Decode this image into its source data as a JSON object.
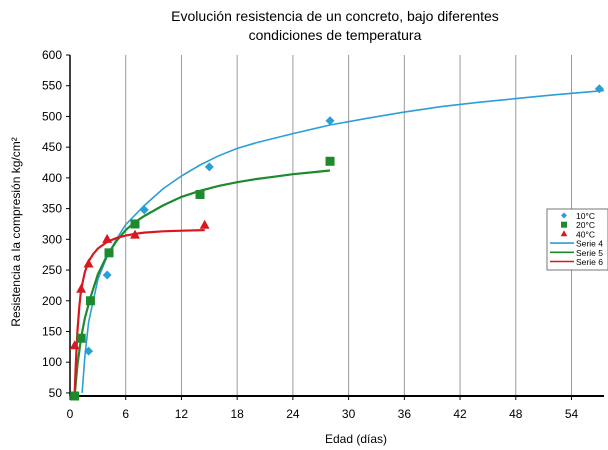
{
  "chart_data": {
    "type": "scatter",
    "title_lines": [
      "Evolución resistencia de un concreto, bajo diferentes",
      "condiciones de temperatura"
    ],
    "xlabel": "Edad (días)",
    "ylabel": "Resistencia a la compresión kg/cm²",
    "xlim": [
      0,
      57.5
    ],
    "ylim": [
      45,
      600
    ],
    "x_ticks": [
      "0",
      "6",
      "12",
      "18",
      "24",
      "30",
      "36",
      "42",
      "48",
      "54"
    ],
    "y_ticks": [
      "50",
      "100",
      "150",
      "200",
      "250",
      "300",
      "350",
      "400",
      "450",
      "500",
      "550",
      "600"
    ],
    "grid": "vertical",
    "legend_position": "right",
    "series": [
      {
        "name": "10°C",
        "kind": "points",
        "marker": "diamond",
        "color": "#2a9fd6",
        "points": [
          [
            2,
            118
          ],
          [
            4,
            242
          ],
          [
            8,
            348
          ],
          [
            15,
            418
          ],
          [
            28,
            493
          ],
          [
            57,
            545
          ]
        ]
      },
      {
        "name": "20°C",
        "kind": "points",
        "marker": "square",
        "color": "#1e8a2e",
        "points": [
          [
            0.5,
            45
          ],
          [
            1.2,
            139
          ],
          [
            2.2,
            200
          ],
          [
            4.2,
            278
          ],
          [
            7,
            325
          ],
          [
            14,
            373
          ],
          [
            28,
            427
          ]
        ]
      },
      {
        "name": "40°C",
        "kind": "points",
        "marker": "triangle",
        "color": "#d7181f",
        "points": [
          [
            0.5,
            127
          ],
          [
            1.2,
            219
          ],
          [
            2,
            260
          ],
          [
            4,
            300
          ],
          [
            7,
            307
          ],
          [
            14.5,
            323
          ]
        ]
      },
      {
        "name": "Serie 4",
        "kind": "line",
        "color": "#2a9fd6",
        "points": [
          [
            1.3,
            50
          ],
          [
            1.6,
            110
          ],
          [
            2,
            165
          ],
          [
            3,
            235
          ],
          [
            4,
            272
          ],
          [
            5,
            300
          ],
          [
            6,
            324
          ],
          [
            8,
            355
          ],
          [
            10,
            382
          ],
          [
            12,
            403
          ],
          [
            14,
            421
          ],
          [
            16,
            436
          ],
          [
            18,
            448
          ],
          [
            20,
            457
          ],
          [
            24,
            472
          ],
          [
            28,
            486
          ],
          [
            32,
            497
          ],
          [
            36,
            507
          ],
          [
            40,
            516
          ],
          [
            44,
            523
          ],
          [
            48,
            529
          ],
          [
            52,
            535
          ],
          [
            57.5,
            542
          ]
        ]
      },
      {
        "name": "Serie 5",
        "kind": "line",
        "color": "#1e8a2e",
        "points": [
          [
            0.5,
            45
          ],
          [
            0.8,
            95
          ],
          [
            1.2,
            140
          ],
          [
            1.6,
            172
          ],
          [
            2.2,
            205
          ],
          [
            3,
            243
          ],
          [
            4,
            274
          ],
          [
            5,
            297
          ],
          [
            6,
            315
          ],
          [
            7,
            328
          ],
          [
            8,
            338
          ],
          [
            10,
            355
          ],
          [
            12,
            369
          ],
          [
            14,
            379
          ],
          [
            16,
            387
          ],
          [
            18,
            393
          ],
          [
            20,
            398
          ],
          [
            22,
            402
          ],
          [
            24,
            406
          ],
          [
            26,
            409
          ],
          [
            28,
            412
          ]
        ]
      },
      {
        "name": "Serie 6",
        "kind": "line",
        "color": "#d7181f",
        "points": [
          [
            0.5,
            45
          ],
          [
            0.6,
            90
          ],
          [
            0.8,
            150
          ],
          [
            1,
            190
          ],
          [
            1.2,
            218
          ],
          [
            1.6,
            247
          ],
          [
            2,
            264
          ],
          [
            2.5,
            276
          ],
          [
            3,
            285
          ],
          [
            4,
            296
          ],
          [
            5,
            302
          ],
          [
            6,
            306
          ],
          [
            7,
            309
          ],
          [
            8,
            311
          ],
          [
            10,
            313
          ],
          [
            12,
            314
          ],
          [
            14.5,
            315
          ]
        ]
      }
    ]
  }
}
